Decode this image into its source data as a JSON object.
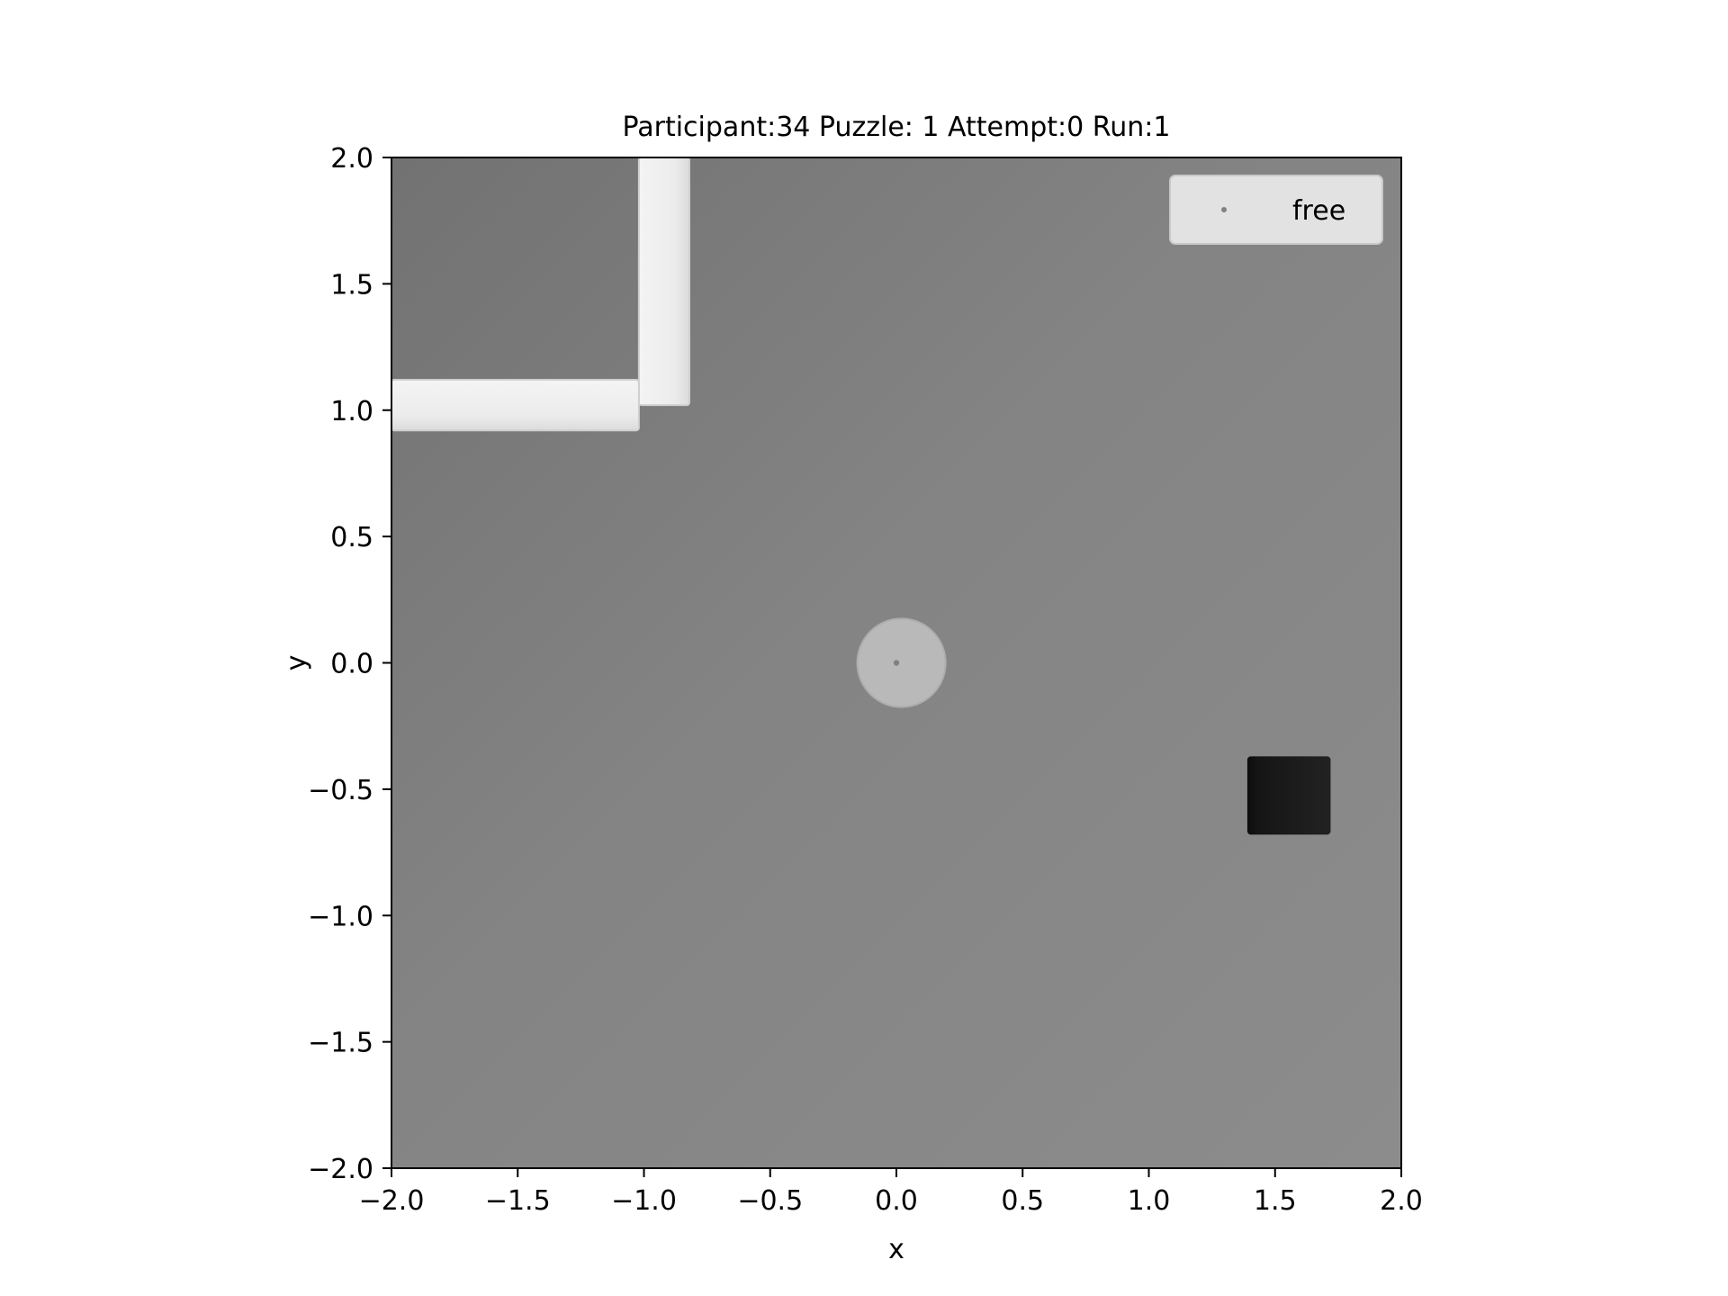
{
  "chart_data": {
    "type": "scatter",
    "title": "Participant:34 Puzzle: 1 Attempt:0 Run:1",
    "xlabel": "x",
    "ylabel": "y",
    "xlim": [
      -2.0,
      2.0
    ],
    "ylim": [
      -2.0,
      2.0
    ],
    "xticks": [
      -2.0,
      -1.5,
      -1.0,
      -0.5,
      0.0,
      0.5,
      1.0,
      1.5,
      2.0
    ],
    "yticks": [
      -2.0,
      -1.5,
      -1.0,
      -0.5,
      0.0,
      0.5,
      1.0,
      1.5,
      2.0
    ],
    "xtick_labels": [
      "−2.0",
      "−1.5",
      "−1.0",
      "−0.5",
      "0.0",
      "0.5",
      "1.0",
      "1.5",
      "2.0"
    ],
    "ytick_labels": [
      "−2.0",
      "−1.5",
      "−1.0",
      "−0.5",
      "0.0",
      "0.5",
      "1.0",
      "1.5",
      "2.0"
    ],
    "grid": false,
    "legend_position": "top-right",
    "series": [
      {
        "name": "free",
        "color": "#808080",
        "points": [
          {
            "x": 0.0,
            "y": 0.0
          }
        ]
      }
    ],
    "background_image": {
      "description": "grayscale top-down scene",
      "floor_color": "#848484",
      "walls": [
        {
          "x0": -1.02,
          "x1": -0.82,
          "y0": 1.02,
          "y1": 2.0,
          "color": "#eeeeee"
        },
        {
          "x0": -2.0,
          "x1": -1.02,
          "y0": 0.92,
          "y1": 1.12,
          "color": "#eeeeee"
        }
      ],
      "disc": {
        "cx": 0.02,
        "cy": 0.0,
        "r": 0.175,
        "color": "#b9b9b9"
      },
      "block": {
        "x0": 1.39,
        "x1": 1.72,
        "y0": -0.68,
        "y1": -0.37,
        "color": "#1b1b1b"
      }
    }
  }
}
